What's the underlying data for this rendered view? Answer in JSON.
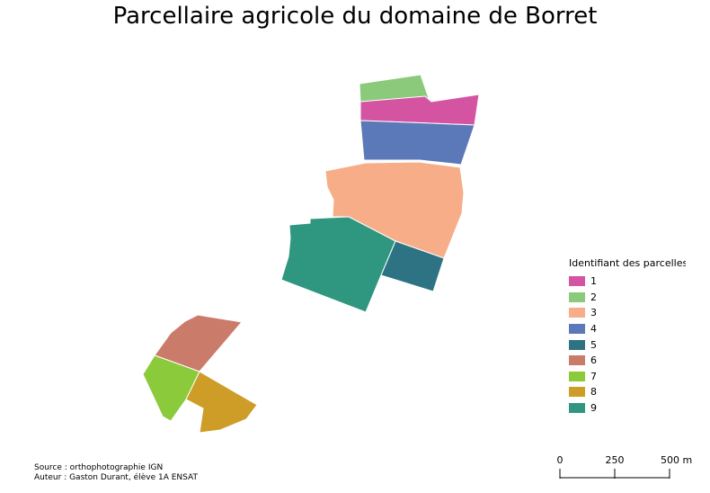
{
  "title": "Parcellaire agricole du domaine de Borret",
  "legend": {
    "title": "Identifiant des parcelles",
    "items": [
      {
        "id": "1",
        "label": "1",
        "color": "#d554a2"
      },
      {
        "id": "2",
        "label": "2",
        "color": "#8bca7a"
      },
      {
        "id": "3",
        "label": "3",
        "color": "#f7ad88"
      },
      {
        "id": "4",
        "label": "4",
        "color": "#5b78b8"
      },
      {
        "id": "5",
        "label": "5",
        "color": "#2d7384"
      },
      {
        "id": "6",
        "label": "6",
        "color": "#cb7b6a"
      },
      {
        "id": "7",
        "label": "7",
        "color": "#8bca3b"
      },
      {
        "id": "8",
        "label": "8",
        "color": "#cd9d28"
      },
      {
        "id": "9",
        "label": "9",
        "color": "#2f9680"
      }
    ]
  },
  "scale_bar": {
    "labels": [
      "0",
      "250",
      "500 m"
    ]
  },
  "source": {
    "line1": "Source : orthophotographie IGN",
    "line2": "Auteur : Gaston Durant, élève 1A ENSAT"
  }
}
